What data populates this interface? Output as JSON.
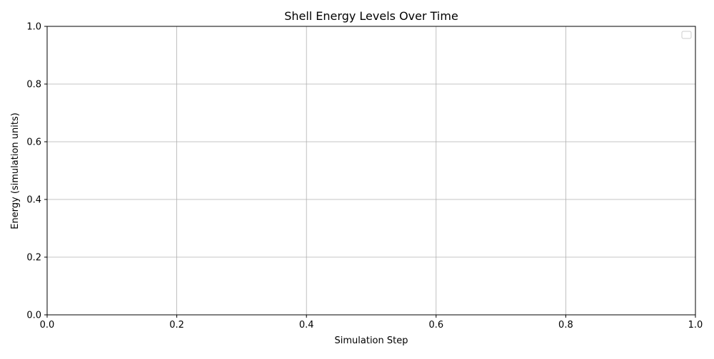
{
  "chart_data": {
    "type": "line",
    "title": "Shell Energy Levels Over Time",
    "xlabel": "Simulation Step",
    "ylabel": "Energy (simulation units)",
    "xlim": [
      0.0,
      1.0
    ],
    "ylim": [
      0.0,
      1.0
    ],
    "xticks": [
      "0.0",
      "0.2",
      "0.4",
      "0.6",
      "0.8",
      "1.0"
    ],
    "yticks": [
      "0.0",
      "0.2",
      "0.4",
      "0.6",
      "0.8",
      "1.0"
    ],
    "grid": true,
    "legend": {
      "placement": "top-right",
      "entries": []
    },
    "series": [],
    "colors": {
      "grid": "#b0b0b0",
      "axis": "#000000",
      "background": "#ffffff",
      "legend_border": "#cccccc"
    }
  }
}
